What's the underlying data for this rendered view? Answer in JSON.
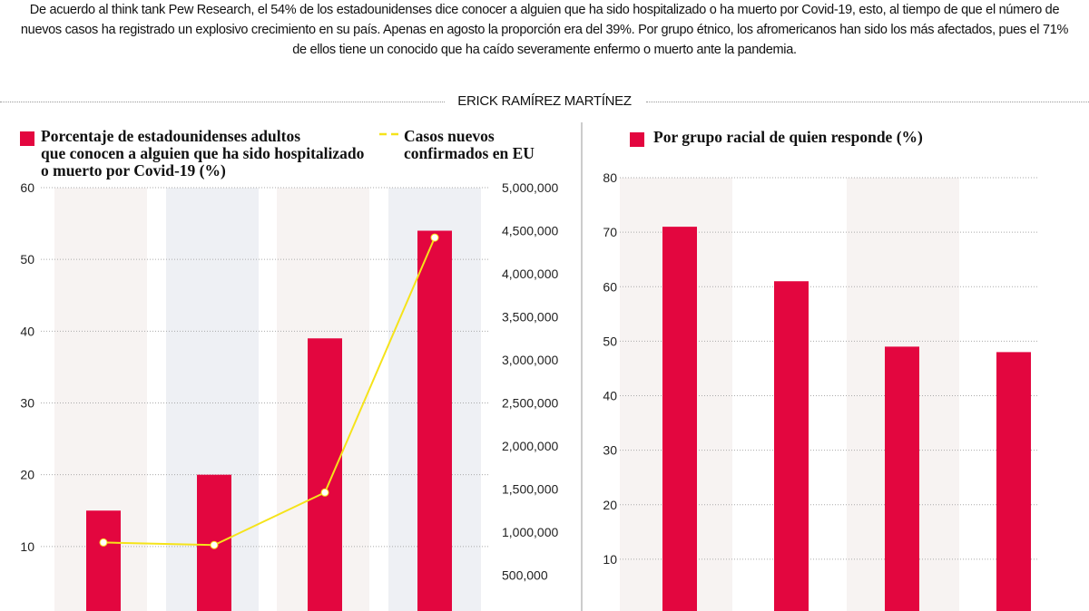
{
  "intro": "De acuerdo al think tank Pew Research, el 54% de los estadounidenses dice conocer a alguien que ha sido hospitalizado o ha muerto por Covid-19, esto, al tiempo de que el número de nuevos casos ha registrado un explosivo crecimiento en su país. Apenas en agosto la proporción era del 39%. Por grupo étnico, los afromericanos han sido los más afectados, pues el 71% de ellos tiene un conocido que ha caído severamente enfermo o muerto ante la pandemia.",
  "byline": "ERICK RAMÍREZ MARTÍNEZ",
  "colors": {
    "bar": "#e3063f",
    "line": "#f5e31a",
    "band_pink": "#f7f3f2",
    "band_blue": "#eef0f4"
  },
  "chart_data": [
    {
      "type": "bar+line",
      "legend": {
        "bar_lines": [
          "Porcentaje de estadounidenses adultos",
          "que conocen a alguien que ha sido hospitalizado",
          "o muerto por Covid-19 (%)"
        ],
        "line_lines": [
          "Casos nuevos",
          "confirmados en EU"
        ]
      },
      "y_left": {
        "range": [
          0,
          60
        ],
        "ticks": [
          "60",
          "50",
          "40",
          "30",
          "20",
          "10"
        ]
      },
      "y_right": {
        "range": [
          0,
          5000000
        ],
        "ticks": [
          "5,000,000",
          "4,500,000",
          "4,000,000",
          "3,500,000",
          "3,000,000",
          "2,500,000",
          "2,000,000",
          "1,500,000",
          "1,000,000",
          "500,000"
        ]
      },
      "series": [
        {
          "name": "Porcentaje de estadounidenses adultos que conocen a alguien que ha sido hospitalizado o muerto por Covid-19 (%)",
          "type": "bar",
          "values": [
            15,
            20,
            39,
            54
          ]
        },
        {
          "name": "Casos nuevos confirmados en EU",
          "type": "line",
          "values": [
            880000,
            850000,
            1460000,
            4420000
          ]
        }
      ],
      "grid": true
    },
    {
      "type": "bar",
      "legend": {
        "bar_lines": [
          "Por grupo racial de quien responde (%)"
        ]
      },
      "y_left": {
        "range": [
          0,
          80
        ],
        "ticks": [
          "80",
          "70",
          "60",
          "50",
          "40",
          "30",
          "20",
          "10"
        ]
      },
      "values": [
        71,
        61,
        49,
        48
      ],
      "grid": true
    }
  ]
}
